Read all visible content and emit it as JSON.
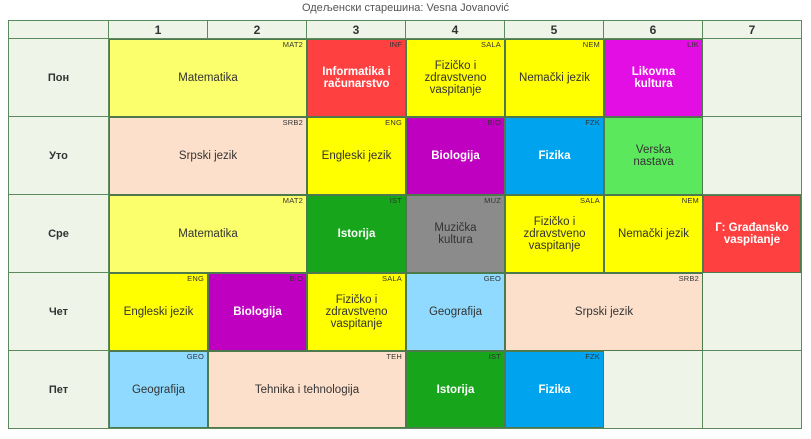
{
  "caption": "Одељенски старешина: Vesna Jovanović",
  "columns": [
    "1",
    "2",
    "3",
    "4",
    "5",
    "6",
    "7"
  ],
  "days": [
    "Пон",
    "Уто",
    "Сре",
    "Чет",
    "Пет"
  ],
  "lessons": {
    "mon_mat2": {
      "name": "Matematika",
      "code": "MAT2",
      "color": "#fbff6b"
    },
    "mon_inf": {
      "name": "Informatika i računarstvo",
      "code": "INF",
      "color": "#ff4040"
    },
    "mon_sala": {
      "name": "Fizičko i zdravstveno vaspitanje",
      "code": "SALA",
      "color": "#ffff00"
    },
    "mon_nem": {
      "name": "Nemački jezik",
      "code": "NEM",
      "color": "#ffff00"
    },
    "mon_lik": {
      "name": "Likovna kultura",
      "code": "LIK",
      "color": "#e30ee3"
    },
    "tue_srb2": {
      "name": "Srpski jezik",
      "code": "SRB2",
      "color": "#fde0cb"
    },
    "tue_eng": {
      "name": "Engleski jezik",
      "code": "ENG",
      "color": "#ffff00"
    },
    "tue_bio": {
      "name": "Biologija",
      "code": "BIO",
      "color": "#c000c0"
    },
    "tue_fzk": {
      "name": "Fizika",
      "code": "FZK",
      "color": "#00a3ee"
    },
    "tue_ver": {
      "name": "Verska nastava",
      "code": "",
      "color": "#5ce85c"
    },
    "wed_mat2": {
      "name": "Matematika",
      "code": "MAT2",
      "color": "#fbff6b"
    },
    "wed_ist": {
      "name": "Istorija",
      "code": "IST",
      "color": "#17a51b"
    },
    "wed_muz": {
      "name": "Muzička kultura",
      "code": "MUZ",
      "color": "#8b8b8b"
    },
    "wed_sala": {
      "name": "Fizičko i zdravstveno vaspitanje",
      "code": "SALA",
      "color": "#ffff00"
    },
    "wed_nem": {
      "name": "Nemački jezik",
      "code": "NEM",
      "color": "#ffff00"
    },
    "wed_gv": {
      "name": "Г: Građansko vaspitanje",
      "code": "",
      "color": "#ff4040"
    },
    "thu_eng": {
      "name": "Engleski jezik",
      "code": "ENG",
      "color": "#ffff00"
    },
    "thu_bio": {
      "name": "Biologija",
      "code": "BIO",
      "color": "#c000c0"
    },
    "thu_sala": {
      "name": "Fizičko i zdravstveno vaspitanje",
      "code": "SALA",
      "color": "#ffff00"
    },
    "thu_geo": {
      "name": "Geografija",
      "code": "GEO",
      "color": "#90daff"
    },
    "thu_srb2": {
      "name": "Srpski jezik",
      "code": "SRB2",
      "color": "#fde0cb"
    },
    "fri_geo": {
      "name": "Geografija",
      "code": "GEO",
      "color": "#90daff"
    },
    "fri_teh": {
      "name": "Tehnika i tehnologija",
      "code": "TEH",
      "color": "#fde0cb"
    },
    "fri_ist": {
      "name": "Istorija",
      "code": "IST",
      "color": "#17a51b"
    },
    "fri_fzk": {
      "name": "Fizika",
      "code": "FZK",
      "color": "#00a3ee"
    }
  }
}
